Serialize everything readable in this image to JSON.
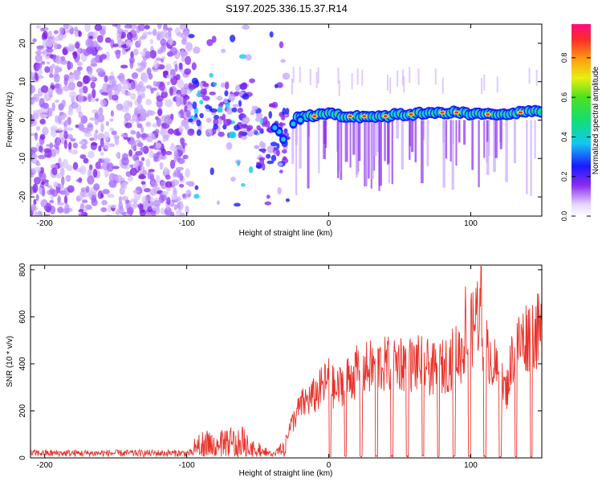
{
  "title": "S197.2025.336.15.37.R14",
  "chart_data": [
    {
      "type": "heatmap",
      "xlabel": "Height of straight line (km)",
      "ylabel": "Frequency (Hz)",
      "xlim": [
        -210,
        150
      ],
      "ylim": [
        -25,
        25
      ],
      "xticks": [
        -200,
        -100,
        0,
        100
      ],
      "yticks": [
        -20,
        -10,
        0,
        10,
        20
      ],
      "colorbar": {
        "label": "Normalized spectral amplitude",
        "range": [
          0,
          0.97
        ],
        "ticks": [
          "0.0",
          "0.2",
          "0.4",
          "0.6",
          "0.8"
        ]
      },
      "ridge": {
        "description_points_x": [
          -10,
          0,
          10,
          20,
          30,
          40,
          50,
          60,
          70,
          80,
          90,
          100,
          110,
          120,
          130,
          140,
          150
        ],
        "frequency_hz": [
          1,
          2,
          1,
          1,
          1,
          1,
          1.5,
          1.5,
          2,
          2,
          2,
          1.5,
          1.5,
          1.5,
          2,
          2,
          2.5
        ]
      }
    },
    {
      "type": "line",
      "xlabel": "Height of straight line (km)",
      "ylabel": "SNR (10 * v/v)",
      "xlim": [
        -210,
        150
      ],
      "ylim": [
        0,
        820
      ],
      "xticks": [
        -200,
        -100,
        0,
        100
      ],
      "yticks": [
        0,
        200,
        400,
        600,
        800
      ],
      "color": "#e8332a",
      "x": [
        -210,
        -100,
        -90,
        -80,
        -70,
        -60,
        -50,
        -40,
        -35,
        -30,
        -25,
        -20,
        -15,
        -10,
        -5,
        0,
        5,
        10,
        15,
        20,
        25,
        30,
        35,
        40,
        45,
        50,
        55,
        60,
        65,
        70,
        75,
        80,
        85,
        90,
        95,
        100,
        105,
        110,
        115,
        120,
        125,
        130,
        135,
        140,
        145,
        150
      ],
      "y": [
        15,
        20,
        110,
        80,
        120,
        110,
        60,
        20,
        40,
        110,
        180,
        250,
        280,
        300,
        340,
        380,
        320,
        370,
        390,
        420,
        430,
        440,
        450,
        450,
        460,
        470,
        460,
        450,
        460,
        440,
        420,
        440,
        470,
        500,
        520,
        600,
        720,
        560,
        480,
        380,
        320,
        520,
        560,
        600,
        620,
        600
      ]
    }
  ]
}
